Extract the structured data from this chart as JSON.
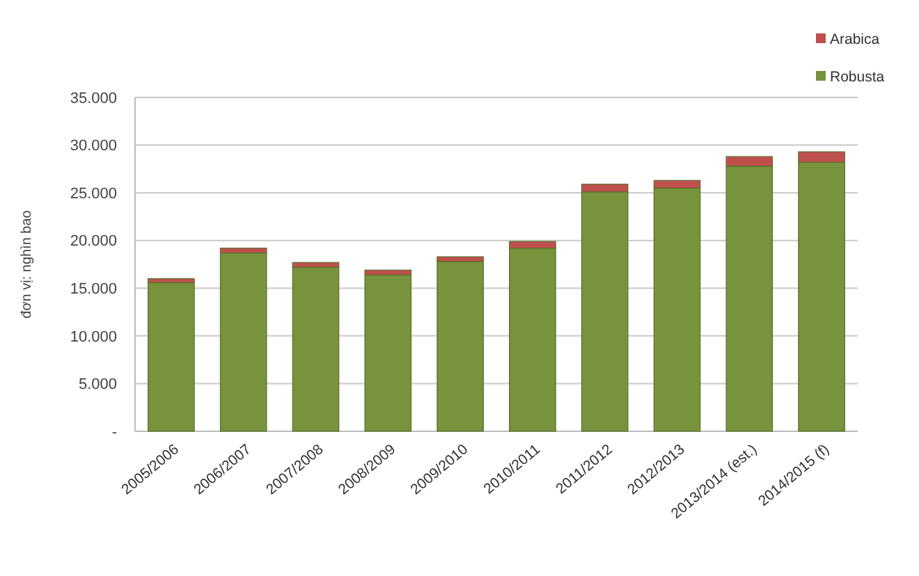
{
  "chart_data": {
    "type": "bar",
    "stacked": true,
    "ylabel": "đơn vị: nghìn bao",
    "categories": [
      "2005/2006",
      "2006/2007",
      "2007/2008",
      "2008/2009",
      "2009/2010",
      "2010/2011",
      "2011/2012",
      "2012/2013",
      "2013/2014 (est.)",
      "2014/2015 (f)"
    ],
    "series": [
      {
        "name": "Robusta",
        "color": "#77933c",
        "values": [
          15600,
          18700,
          17200,
          16400,
          17800,
          19200,
          25100,
          25500,
          27800,
          28200
        ]
      },
      {
        "name": "Arabica",
        "color": "#c0504d",
        "values": [
          400,
          500,
          500,
          500,
          500,
          700,
          800,
          800,
          1000,
          1100
        ]
      }
    ],
    "ylim": [
      0,
      35000
    ],
    "yticks": [
      {
        "value": 0,
        "label": "-"
      },
      {
        "value": 5000,
        "label": "5.000"
      },
      {
        "value": 10000,
        "label": "10.000"
      },
      {
        "value": 15000,
        "label": "15.000"
      },
      {
        "value": 20000,
        "label": "20.000"
      },
      {
        "value": 25000,
        "label": "25.000"
      },
      {
        "value": 30000,
        "label": "30.000"
      },
      {
        "value": 35000,
        "label": "35.000"
      }
    ],
    "grid": true,
    "legend": "top right"
  }
}
